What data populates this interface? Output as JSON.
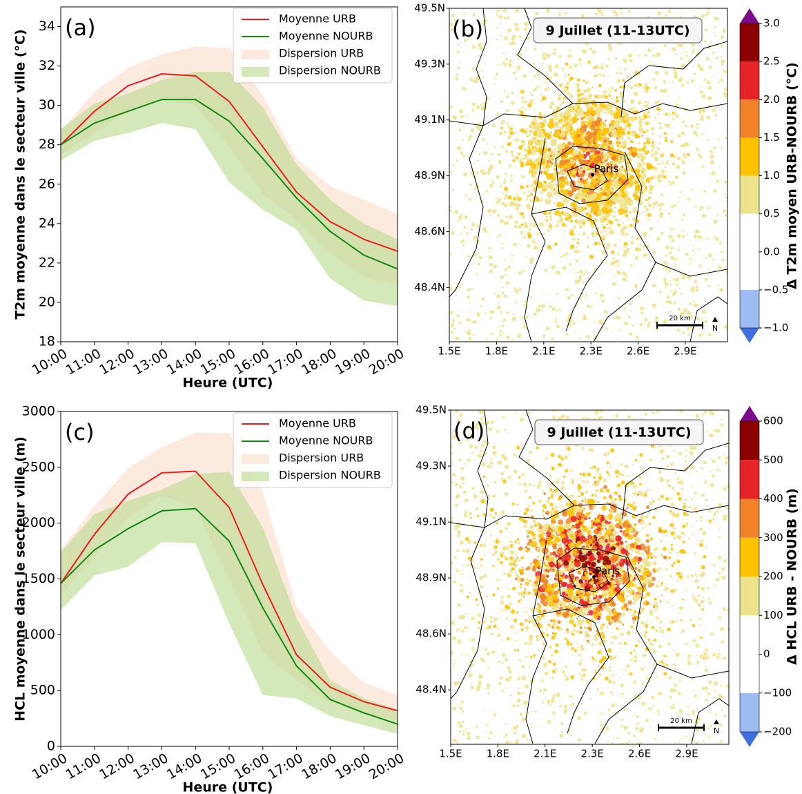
{
  "chart_data": [
    {
      "type": "line",
      "panel": "(a)",
      "ylabel": "T2m moyenne dans le secteur ville (°C)",
      "xlabel": "Heure (UTC)",
      "categories": [
        "10:00",
        "11:00",
        "12:00",
        "13:00",
        "14:00",
        "15:00",
        "16:00",
        "17:00",
        "18:00",
        "19:00",
        "20:00"
      ],
      "ylim": [
        18,
        35
      ],
      "yticks": [
        18,
        20,
        22,
        24,
        26,
        28,
        30,
        32,
        34
      ],
      "series": [
        {
          "name": "Moyenne URB",
          "color": "#ee1c1c",
          "values": [
            28.0,
            29.7,
            31.0,
            31.6,
            31.5,
            30.2,
            27.9,
            25.6,
            24.1,
            23.2,
            22.6
          ]
        },
        {
          "name": "Moyenne NOURB",
          "color": "#118811",
          "values": [
            28.0,
            29.1,
            29.7,
            30.3,
            30.3,
            29.2,
            27.3,
            25.3,
            23.6,
            22.4,
            21.7
          ]
        },
        {
          "name": "Dispersion URB",
          "color": "#fcdcc8",
          "kind": "band",
          "lower": [
            27.5,
            28.6,
            29.7,
            30.3,
            30.0,
            27.9,
            25.5,
            24.2,
            22.5,
            21.3,
            20.9
          ],
          "upper": [
            28.7,
            30.7,
            31.9,
            32.6,
            33.0,
            32.9,
            30.5,
            27.3,
            25.9,
            25.2,
            24.5
          ]
        },
        {
          "name": "Dispersion NOURB",
          "color": "#b9d98c",
          "kind": "band",
          "lower": [
            27.2,
            28.2,
            28.6,
            29.1,
            28.8,
            26.1,
            24.7,
            23.7,
            21.2,
            20.1,
            19.8
          ],
          "upper": [
            28.8,
            30.1,
            30.6,
            31.3,
            31.7,
            31.7,
            29.9,
            27.0,
            25.2,
            24.0,
            23.2
          ]
        }
      ]
    },
    {
      "type": "map",
      "panel": "(b)",
      "title": "9 Juillet (11-13UTC)",
      "city_label": "Paris",
      "scale_label": "20 km",
      "north_label": "N",
      "xlim": [
        1.5,
        3.15
      ],
      "xticks": [
        {
          "value": 1.5,
          "label": "1.5E"
        },
        {
          "value": 1.78,
          "label": "1.8E"
        },
        {
          "value": 2.06,
          "label": "2.1E"
        },
        {
          "value": 2.34,
          "label": "2.3E"
        },
        {
          "value": 2.62,
          "label": "2.6E"
        },
        {
          "value": 2.9,
          "label": "2.9E"
        }
      ],
      "ylim": [
        48.21,
        49.5
      ],
      "yticks": [
        {
          "value": 49.5,
          "label": "49.5N"
        },
        {
          "value": 49.284,
          "label": "49.3N"
        },
        {
          "value": 49.068,
          "label": "49.1N"
        },
        {
          "value": 48.852,
          "label": "48.9N"
        },
        {
          "value": 48.636,
          "label": "48.6N"
        },
        {
          "value": 48.42,
          "label": "48.4N"
        }
      ],
      "colorbar": {
        "label": "Δ T2m moyen URB-NOURB (°C)",
        "levels": [
          {
            "value": -1.0,
            "label": "−1.0"
          },
          {
            "value": -0.5,
            "label": "−0.5"
          },
          {
            "value": 0.0,
            "label": "0.0"
          },
          0.5,
          {
            "value": 1.0,
            "label": "1.0"
          },
          1.5,
          {
            "value": 2.0,
            "label": "2.0"
          },
          2.5,
          {
            "value": 3.0,
            "label": "3.0"
          }
        ],
        "colors": [
          "#9dbdf2",
          "#ffffff",
          "#ffffff",
          "#ede38c",
          "#fdc200",
          "#f08228",
          "#e8232a",
          "#8b0000"
        ],
        "under_color": "#3f6fe0",
        "over_color": "#7b0a8a"
      }
    },
    {
      "type": "line",
      "panel": "(c)",
      "ylabel": "HCL moyenne dans le secteur ville (m)",
      "xlabel": "Heure (UTC)",
      "categories": [
        "10:00",
        "11:00",
        "12:00",
        "13:00",
        "14:00",
        "15:00",
        "16:00",
        "17:00",
        "18:00",
        "19:00",
        "20:00"
      ],
      "ylim": [
        0,
        3000
      ],
      "yticks": [
        0,
        500,
        1000,
        1500,
        2000,
        2500,
        3000
      ],
      "series": [
        {
          "name": "Moyenne URB",
          "color": "#ee1c1c",
          "values": [
            1460,
            1900,
            2260,
            2450,
            2465,
            2140,
            1450,
            820,
            530,
            400,
            320
          ]
        },
        {
          "name": "Moyenne NOURB",
          "color": "#118811",
          "values": [
            1460,
            1760,
            1950,
            2110,
            2130,
            1840,
            1240,
            720,
            420,
            300,
            200
          ]
        },
        {
          "name": "Dispersion URB",
          "color": "#fcdcc8",
          "kind": "band",
          "lower": [
            1350,
            1700,
            2050,
            2250,
            2140,
            1500,
            850,
            590,
            390,
            300,
            230
          ],
          "upper": [
            1760,
            2150,
            2490,
            2680,
            2810,
            2810,
            2280,
            1250,
            850,
            570,
            460
          ]
        },
        {
          "name": "Dispersion NOURB",
          "color": "#b9d98c",
          "kind": "band",
          "lower": [
            1220,
            1530,
            1610,
            1830,
            1820,
            1100,
            460,
            430,
            270,
            190,
            110
          ],
          "upper": [
            1740,
            2080,
            2200,
            2300,
            2440,
            2460,
            1960,
            1150,
            590,
            430,
            330
          ]
        }
      ]
    },
    {
      "type": "map",
      "panel": "(d)",
      "title": "9 Juillet (11-13UTC)",
      "city_label": "Paris",
      "scale_label": "20 km",
      "north_label": "N",
      "xlim": [
        1.5,
        3.15
      ],
      "xticks": [
        {
          "value": 1.5,
          "label": "1.5E"
        },
        {
          "value": 1.78,
          "label": "1.8E"
        },
        {
          "value": 2.06,
          "label": "2.1E"
        },
        {
          "value": 2.34,
          "label": "2.3E"
        },
        {
          "value": 2.62,
          "label": "2.6E"
        },
        {
          "value": 2.9,
          "label": "2.9E"
        }
      ],
      "ylim": [
        48.21,
        49.5
      ],
      "yticks": [
        {
          "value": 49.5,
          "label": "49.5N"
        },
        {
          "value": 49.284,
          "label": "49.3N"
        },
        {
          "value": 49.068,
          "label": "49.1N"
        },
        {
          "value": 48.852,
          "label": "48.9N"
        },
        {
          "value": 48.636,
          "label": "48.6N"
        },
        {
          "value": 48.42,
          "label": "48.4N"
        }
      ],
      "colorbar": {
        "label": "Δ HCL URB - NOURB (m)",
        "levels": [
          {
            "value": -200,
            "label": "−200"
          },
          {
            "value": -100,
            "label": "−100"
          },
          0,
          100,
          200,
          300,
          400,
          500,
          600
        ],
        "colors": [
          "#9dbdf2",
          "#ffffff",
          "#ffffff",
          "#ede38c",
          "#fdc200",
          "#f08228",
          "#e8232a",
          "#8b0000"
        ],
        "under_color": "#3f6fe0",
        "over_color": "#7b0a8a"
      }
    }
  ]
}
